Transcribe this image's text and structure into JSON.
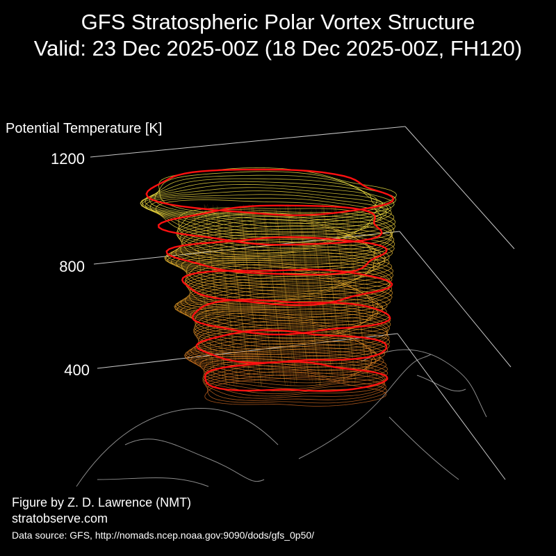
{
  "title": {
    "line1": "GFS Stratospheric Polar Vortex Structure",
    "line2": "Valid: 23 Dec 2025-00Z  (18 Dec 2025-00Z, FH120)"
  },
  "chart_data": {
    "type": "3d-isosurface",
    "zlabel": "Potential Temperature [K]",
    "zticks": [
      "1200",
      "800",
      "400"
    ],
    "zlim": [
      0,
      1200
    ],
    "highlighted_levels_K": [
      400,
      500,
      600,
      700,
      800,
      900
    ],
    "top_level_K": 1000,
    "colors": {
      "low": "#c8641e",
      "mid": "#e6a028",
      "high": "#f0e646",
      "highlight": "#ff1010",
      "coast": "#8c8c8c",
      "frame": "#c8c8c8"
    }
  },
  "credits": {
    "author": "Figure by Z. D. Lawrence (NMT)",
    "site": "stratobserve.com",
    "source": "Data source: GFS, http://nomads.ncep.noaa.gov:9090/dods/gfs_0p50/"
  }
}
